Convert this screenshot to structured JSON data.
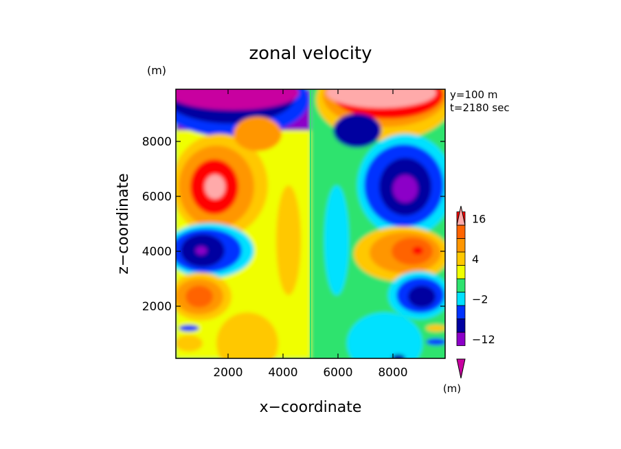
{
  "chart_data": {
    "type": "heatmap",
    "title": "zonal velocity",
    "xlabel": "x−coordinate",
    "ylabel": "z−coordinate",
    "x_unit": "(m)",
    "y_unit": "(m)",
    "xlim": [
      100,
      9900
    ],
    "ylim": [
      100,
      9900
    ],
    "x_ticks": [
      2000,
      4000,
      6000,
      8000
    ],
    "x_tick_labels": [
      "2000",
      "4000",
      "6000",
      "8000"
    ],
    "y_ticks": [
      2000,
      4000,
      6000,
      8000
    ],
    "y_tick_labels": [
      "2000",
      "4000",
      "6000",
      "8000"
    ],
    "annotations": [
      "y=100 m",
      "t=2180 sec"
    ],
    "colorbar": {
      "unit": "(m)",
      "colors": [
        "#C800A0",
        "#8C00C8",
        "#0000A0",
        "#0032FF",
        "#00E1FF",
        "#2DE36E",
        "#F0FF00",
        "#FFC800",
        "#FF9600",
        "#FF6400",
        "#FF0000",
        "#FFAAAA"
      ],
      "labeled_levels": [
        {
          "color_index": 10,
          "label": "16"
        },
        {
          "color_index": 7,
          "label": "4"
        },
        {
          "color_index": 4,
          "label": "−2"
        },
        {
          "color_index": 1,
          "label": "−12"
        }
      ]
    },
    "regions": [
      {
        "x": 1400,
        "z": 6400,
        "value": 18
      },
      {
        "x": 3200,
        "z": 8500,
        "value": 8
      },
      {
        "x": 1100,
        "z": 4000,
        "value": -16
      },
      {
        "x": 1000,
        "z": 2400,
        "value": 8
      },
      {
        "x": 1500,
        "z": 9800,
        "value": -18
      },
      {
        "x": 7200,
        "z": 8500,
        "value": -12
      },
      {
        "x": 8900,
        "z": 6400,
        "value": -16
      },
      {
        "x": 8900,
        "z": 4000,
        "value": 12
      },
      {
        "x": 9000,
        "z": 2400,
        "value": -12
      },
      {
        "x": 7700,
        "z": 9800,
        "value": 18
      },
      {
        "x": 4000,
        "z": 4500,
        "value": 2
      },
      {
        "x": 6000,
        "z": 4500,
        "value": -2
      }
    ]
  }
}
